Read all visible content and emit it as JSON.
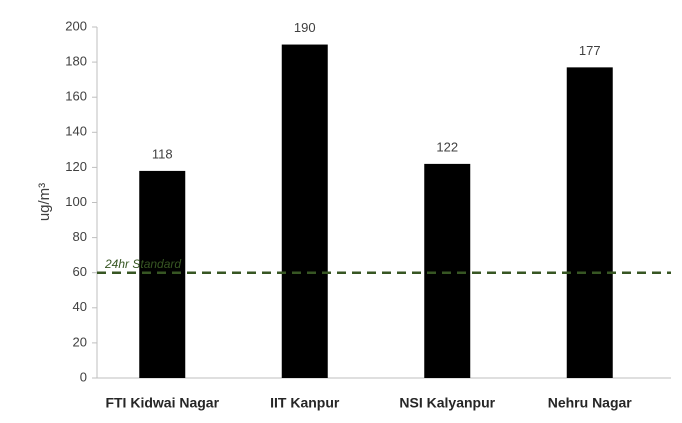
{
  "chart_data": {
    "type": "bar",
    "y_label": "ug/m³",
    "categories": [
      "FTI Kidwai Nagar",
      "IIT Kanpur",
      "NSI Kalyanpur",
      "Nehru Nagar"
    ],
    "values": [
      118,
      190,
      122,
      177
    ],
    "color": "#000000",
    "ylim": [
      0,
      200
    ],
    "yticks": [
      0,
      20,
      40,
      60,
      80,
      100,
      120,
      140,
      160,
      180,
      200
    ],
    "grid": false,
    "data_labels": true,
    "reference_lines": [
      {
        "value": 60,
        "label": "24hr Standard",
        "color": "#375623"
      }
    ]
  }
}
